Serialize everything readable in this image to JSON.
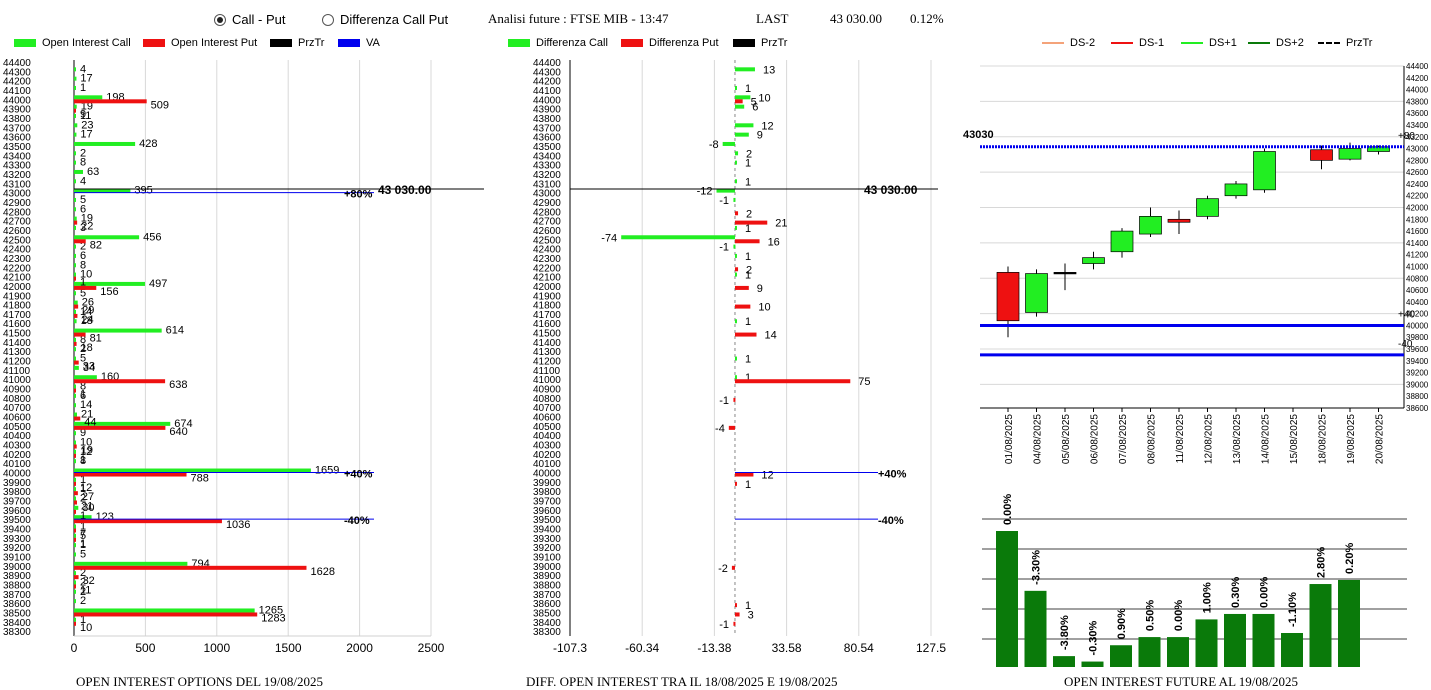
{
  "header": {
    "radio_call_put": "Call - Put",
    "radio_diff": "Differenza Call Put",
    "analisi": "Analisi future : FTSE MIB - 13:47",
    "last_label": "LAST",
    "last_value": "43 030.00",
    "last_pct": "0.12%"
  },
  "colors": {
    "green": "#22ee22",
    "red": "#ee1111",
    "blue": "#0000ee",
    "dark_green": "#0a7a0a",
    "black": "#000000"
  },
  "chart1": {
    "legend": [
      "Open Interest Call",
      "Open Interest Put",
      "PrzTr",
      "VA"
    ],
    "footer": "OPEN INTEREST OPTIONS DEL 19/08/2025",
    "price_label": "43 030.00",
    "strike_labels": [
      "44400",
      "44300",
      "44200",
      "44100",
      "44000",
      "43900",
      "43800",
      "43700",
      "43600",
      "43500",
      "43400",
      "43300",
      "43200",
      "43100",
      "43000",
      "42900",
      "42800",
      "42700",
      "42600",
      "42500",
      "42400",
      "42300",
      "42200",
      "42100",
      "42000",
      "41900",
      "41800",
      "41700",
      "41600",
      "41500",
      "41400",
      "41300",
      "41200",
      "41100",
      "41000",
      "40900",
      "40800",
      "40700",
      "40600",
      "40500",
      "40400",
      "40300",
      "40200",
      "40100",
      "40000",
      "39900",
      "39800",
      "39700",
      "39600",
      "39500",
      "39400",
      "39300",
      "39200",
      "39100",
      "39000",
      "38900",
      "38800",
      "38700",
      "38600",
      "38500",
      "38400",
      "38300"
    ],
    "x_ticks": [
      "0",
      "500",
      "1000",
      "1500",
      "2000",
      "2500"
    ],
    "lines": [
      {
        "strike": 43000,
        "label": "+80%"
      },
      {
        "strike": 40000,
        "label": "+40%"
      },
      {
        "strike": 39500,
        "label": "-40%"
      }
    ]
  },
  "chart2": {
    "legend": [
      "Differenza Call",
      "Differenza Put",
      "PrzTr"
    ],
    "footer": "DIFF. OPEN INTEREST TRA IL 18/08/2025 E 19/08/2025",
    "price_label": "43 030.00",
    "x_ticks": [
      "-107.3",
      "-60.34",
      "-13.38",
      "33.58",
      "80.54",
      "127.5"
    ],
    "lines": [
      {
        "strike": 40000,
        "label": "+40%"
      },
      {
        "strike": 39500,
        "label": "-40%"
      }
    ]
  },
  "chart3": {
    "legend": [
      "DS-2",
      "DS-1",
      "DS+1",
      "DS+2",
      "PrzTr"
    ],
    "price_label": "43030",
    "right_labels": [
      "+80",
      "+40",
      "-40"
    ],
    "y_ticks": [
      "44400",
      "44200",
      "44000",
      "43800",
      "43600",
      "43400",
      "43200",
      "43000",
      "42800",
      "42600",
      "42400",
      "42200",
      "42000",
      "41800",
      "41600",
      "41400",
      "41200",
      "41000",
      "40800",
      "40600",
      "40400",
      "40200",
      "40000",
      "39800",
      "39600",
      "39400",
      "39200",
      "39000",
      "38800",
      "38600"
    ]
  },
  "chart4": {
    "footer": "OPEN INTEREST FUTURE AL 19/08/2025"
  },
  "chart_data": [
    {
      "type": "bar",
      "orientation": "horizontal",
      "title": "OPEN INTEREST OPTIONS DEL 19/08/2025",
      "xlim": [
        0,
        2500
      ],
      "series": [
        {
          "name": "Open Interest Call",
          "color": "#22ee22",
          "points": [
            {
              "strike": 44300,
              "value": 4
            },
            {
              "strike": 44200,
              "value": 17
            },
            {
              "strike": 44100,
              "value": 1
            },
            {
              "strike": 44000,
              "value": 198
            },
            {
              "strike": 43900,
              "value": 19
            },
            {
              "strike": 43800,
              "value": 11
            },
            {
              "strike": 43700,
              "value": 23
            },
            {
              "strike": 43600,
              "value": 17
            },
            {
              "strike": 43500,
              "value": 428
            },
            {
              "strike": 43400,
              "value": 2
            },
            {
              "strike": 43300,
              "value": 8
            },
            {
              "strike": 43200,
              "value": 63
            },
            {
              "strike": 43100,
              "value": 4
            },
            {
              "strike": 43000,
              "value": 395
            },
            {
              "strike": 42900,
              "value": 5
            },
            {
              "strike": 42800,
              "value": 6
            },
            {
              "strike": 42700,
              "value": 19
            },
            {
              "strike": 42600,
              "value": 3
            },
            {
              "strike": 42500,
              "value": 456
            },
            {
              "strike": 42400,
              "value": 2
            },
            {
              "strike": 42300,
              "value": 6
            },
            {
              "strike": 42200,
              "value": 8
            },
            {
              "strike": 42100,
              "value": 10
            },
            {
              "strike": 42000,
              "value": 497
            },
            {
              "strike": 41900,
              "value": 5
            },
            {
              "strike": 41800,
              "value": 26
            },
            {
              "strike": 41700,
              "value": 14
            },
            {
              "strike": 41600,
              "value": 18
            },
            {
              "strike": 41500,
              "value": 614
            },
            {
              "strike": 41400,
              "value": 8
            },
            {
              "strike": 41300,
              "value": 2
            },
            {
              "strike": 41200,
              "value": 5
            },
            {
              "strike": 41100,
              "value": 34
            },
            {
              "strike": 41000,
              "value": 160
            },
            {
              "strike": 40900,
              "value": 8
            },
            {
              "strike": 40800,
              "value": 6
            },
            {
              "strike": 40700,
              "value": 14
            },
            {
              "strike": 40600,
              "value": 21
            },
            {
              "strike": 40500,
              "value": 674
            },
            {
              "strike": 40400,
              "value": 9
            },
            {
              "strike": 40300,
              "value": 10
            },
            {
              "strike": 40200,
              "value": 12
            },
            {
              "strike": 40100,
              "value": 8
            },
            {
              "strike": 40000,
              "value": 1659
            },
            {
              "strike": 39900,
              "value": 1
            },
            {
              "strike": 39800,
              "value": 1
            },
            {
              "strike": 39700,
              "value": 2
            },
            {
              "strike": 39600,
              "value": 30
            },
            {
              "strike": 39500,
              "value": 123
            },
            {
              "strike": 39400,
              "value": 1
            },
            {
              "strike": 39300,
              "value": 5
            },
            {
              "strike": 39200,
              "value": 1
            },
            {
              "strike": 39100,
              "value": 5
            },
            {
              "strike": 39000,
              "value": 794
            },
            {
              "strike": 38900,
              "value": 2
            },
            {
              "strike": 38800,
              "value": 2
            },
            {
              "strike": 38700,
              "value": 2
            },
            {
              "strike": 38600,
              "value": 2
            },
            {
              "strike": 38500,
              "value": 1265
            },
            {
              "strike": 38400,
              "value": 1
            }
          ]
        },
        {
          "name": "Open Interest Put",
          "color": "#ee1111",
          "points": [
            {
              "strike": 44000,
              "value": 509
            },
            {
              "strike": 43900,
              "value": 9
            },
            {
              "strike": 42700,
              "value": 22
            },
            {
              "strike": 42500,
              "value": 82
            },
            {
              "strike": 42100,
              "value": 1
            },
            {
              "strike": 42000,
              "value": 156
            },
            {
              "strike": 41800,
              "value": 29
            },
            {
              "strike": 41700,
              "value": 24
            },
            {
              "strike": 41500,
              "value": 81
            },
            {
              "strike": 41400,
              "value": 18
            },
            {
              "strike": 41200,
              "value": 33
            },
            {
              "strike": 41000,
              "value": 638
            },
            {
              "strike": 40900,
              "value": 1
            },
            {
              "strike": 40600,
              "value": 44
            },
            {
              "strike": 40500,
              "value": 640
            },
            {
              "strike": 40300,
              "value": 19
            },
            {
              "strike": 40200,
              "value": 1
            },
            {
              "strike": 40000,
              "value": 788
            },
            {
              "strike": 39900,
              "value": 12
            },
            {
              "strike": 39800,
              "value": 27
            },
            {
              "strike": 39700,
              "value": 21
            },
            {
              "strike": 39600,
              "value": 1
            },
            {
              "strike": 39500,
              "value": 1036
            },
            {
              "strike": 39400,
              "value": 7
            },
            {
              "strike": 39300,
              "value": 1
            },
            {
              "strike": 39000,
              "value": 1628
            },
            {
              "strike": 38900,
              "value": 32
            },
            {
              "strike": 38800,
              "value": 11
            },
            {
              "strike": 38500,
              "value": 1283
            },
            {
              "strike": 38400,
              "value": 10
            }
          ]
        }
      ]
    },
    {
      "type": "bar",
      "orientation": "horizontal",
      "title": "DIFF. OPEN INTEREST TRA IL 18/08/2025 E 19/08/2025",
      "xlim": [
        -107.3,
        127.5
      ],
      "series": [
        {
          "name": "Differenza Call",
          "color": "#22ee22",
          "points": [
            {
              "strike": 44300,
              "value": 13
            },
            {
              "strike": 44100,
              "value": 1
            },
            {
              "strike": 44000,
              "value": 10
            },
            {
              "strike": 43900,
              "value": 6
            },
            {
              "strike": 43700,
              "value": 12
            },
            {
              "strike": 43600,
              "value": 9
            },
            {
              "strike": 43500,
              "value": -8
            },
            {
              "strike": 43400,
              "value": 2
            },
            {
              "strike": 43300,
              "value": 1
            },
            {
              "strike": 43100,
              "value": 1
            },
            {
              "strike": 43000,
              "value": -12
            },
            {
              "strike": 42900,
              "value": -1
            },
            {
              "strike": 42600,
              "value": 1
            },
            {
              "strike": 42500,
              "value": -74
            },
            {
              "strike": 42400,
              "value": -1
            },
            {
              "strike": 42300,
              "value": 1
            },
            {
              "strike": 42100,
              "value": 1
            },
            {
              "strike": 41600,
              "value": 1
            },
            {
              "strike": 41200,
              "value": 1
            },
            {
              "strike": 41000,
              "value": 1
            }
          ]
        },
        {
          "name": "Differenza Put",
          "color": "#ee1111",
          "points": [
            {
              "strike": 44000,
              "value": 5
            },
            {
              "strike": 42800,
              "value": 2
            },
            {
              "strike": 42700,
              "value": 21
            },
            {
              "strike": 42500,
              "value": 16
            },
            {
              "strike": 42200,
              "value": 2
            },
            {
              "strike": 42000,
              "value": 9
            },
            {
              "strike": 41800,
              "value": 10
            },
            {
              "strike": 41500,
              "value": 14
            },
            {
              "strike": 41000,
              "value": 75
            },
            {
              "strike": 40800,
              "value": -1
            },
            {
              "strike": 40500,
              "value": -4
            },
            {
              "strike": 40000,
              "value": 12
            },
            {
              "strike": 39900,
              "value": 1
            },
            {
              "strike": 39000,
              "value": -2
            },
            {
              "strike": 38600,
              "value": 1
            },
            {
              "strike": 38500,
              "value": 3
            },
            {
              "strike": 38400,
              "value": -1
            }
          ]
        }
      ]
    },
    {
      "type": "candlestick",
      "ylim": [
        38600,
        44400
      ],
      "categories": [
        "01/08/2025",
        "04/08/2025",
        "05/08/2025",
        "06/08/2025",
        "07/08/2025",
        "08/08/2025",
        "11/08/2025",
        "12/08/2025",
        "13/08/2025",
        "14/08/2025",
        "15/08/2025",
        "18/08/2025",
        "19/08/2025",
        "20/08/2025"
      ],
      "candles": [
        {
          "date": "01/08/2025",
          "open": 40900,
          "high": 41000,
          "low": 39800,
          "close": 40080,
          "color": "#ee1111"
        },
        {
          "date": "04/08/2025",
          "open": 40220,
          "high": 40950,
          "low": 40150,
          "close": 40880,
          "color": "#22ee22"
        },
        {
          "date": "05/08/2025",
          "open": 40900,
          "high": 41050,
          "low": 40600,
          "close": 40900,
          "color": "#000000"
        },
        {
          "date": "06/08/2025",
          "open": 41050,
          "high": 41250,
          "low": 40950,
          "close": 41150,
          "color": "#22ee22"
        },
        {
          "date": "07/08/2025",
          "open": 41250,
          "high": 41650,
          "low": 41150,
          "close": 41600,
          "color": "#22ee22"
        },
        {
          "date": "08/08/2025",
          "open": 41550,
          "high": 42000,
          "low": 41500,
          "close": 41850,
          "color": "#22ee22"
        },
        {
          "date": "11/08/2025",
          "open": 41800,
          "high": 41950,
          "low": 41550,
          "close": 41750,
          "color": "#ee1111"
        },
        {
          "date": "12/08/2025",
          "open": 41850,
          "high": 42200,
          "low": 41800,
          "close": 42150,
          "color": "#22ee22"
        },
        {
          "date": "13/08/2025",
          "open": 42200,
          "high": 42450,
          "low": 42150,
          "close": 42400,
          "color": "#22ee22"
        },
        {
          "date": "14/08/2025",
          "open": 42300,
          "high": 43000,
          "low": 42250,
          "close": 42950,
          "color": "#22ee22"
        },
        {
          "date": "18/08/2025",
          "open": 42980,
          "high": 43050,
          "low": 42650,
          "close": 42800,
          "color": "#ee1111"
        },
        {
          "date": "19/08/2025",
          "open": 42820,
          "high": 43100,
          "low": 42800,
          "close": 43000,
          "color": "#22ee22"
        },
        {
          "date": "20/08/2025",
          "open": 42950,
          "high": 43050,
          "low": 42900,
          "close": 43030,
          "color": "#22ee22"
        }
      ],
      "hlines": [
        {
          "value": 43030,
          "label": "+80",
          "style": "dashed"
        },
        {
          "value": 40000,
          "label": "+40"
        },
        {
          "value": 39500,
          "label": "-40"
        }
      ]
    },
    {
      "type": "bar",
      "title": "OPEN INTEREST FUTURE AL 19/08/2025",
      "labels": [
        "0.00%",
        "-3.30%",
        "-3.80%",
        "-0.30%",
        "0.90%",
        "0.50%",
        "0.00%",
        "1.00%",
        "0.30%",
        "0.00%",
        "-1.10%",
        "2.80%",
        "0.20%"
      ],
      "values": [
        100,
        56,
        8,
        4,
        16,
        22,
        22,
        35,
        39,
        39,
        25,
        61,
        64
      ],
      "color": "#0a7a0a"
    }
  ]
}
